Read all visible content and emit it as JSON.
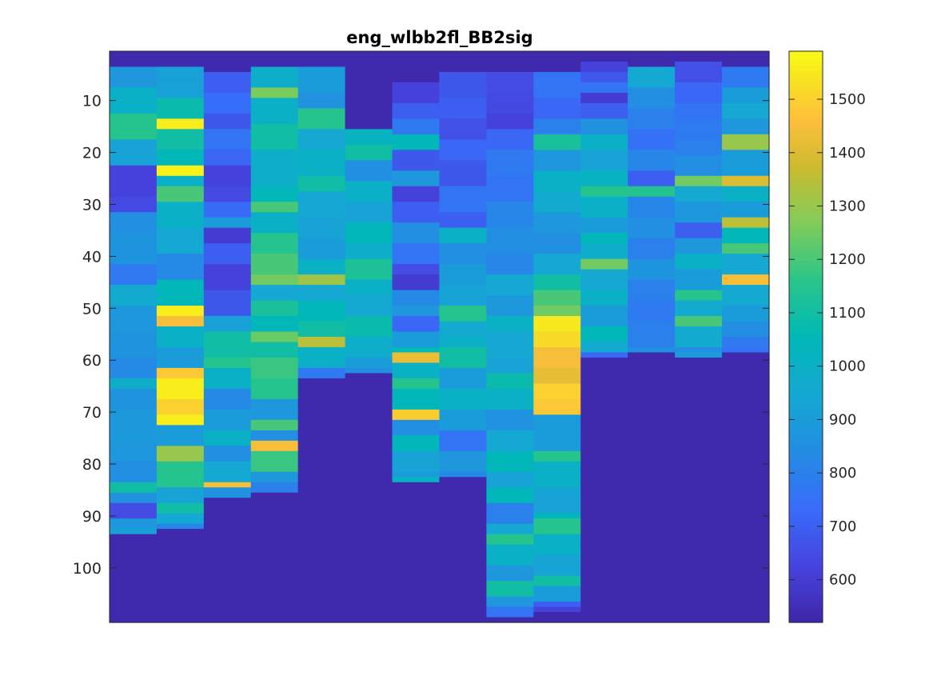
{
  "chart_data": {
    "type": "heatmap",
    "title": "eng_wlbb2fl_BB2sig",
    "xlabel": "",
    "ylabel": "",
    "rows": 110,
    "columns": 14,
    "y_reversed": true,
    "ylim": [
      0.5,
      110.5
    ],
    "y_ticks": [
      10,
      20,
      30,
      40,
      50,
      60,
      70,
      80,
      90,
      100
    ],
    "show_x_ticks": false,
    "colormap": "parula",
    "clim": [
      520,
      1590
    ],
    "colorbar_ticks": [
      600,
      700,
      800,
      900,
      1000,
      1100,
      1200,
      1300,
      1400,
      1500
    ],
    "fill_value": 530,
    "column_valid_ranges": [
      [
        4,
        93
      ],
      [
        4,
        92
      ],
      [
        5,
        86
      ],
      [
        4,
        85
      ],
      [
        4,
        63
      ],
      [
        16,
        62
      ],
      [
        7,
        83
      ],
      [
        5,
        82
      ],
      [
        5,
        109
      ],
      [
        5,
        108
      ],
      [
        3,
        59
      ],
      [
        4,
        58
      ],
      [
        3,
        59
      ],
      [
        4,
        58
      ]
    ],
    "column_profiles": [
      [
        [
          4,
          880
        ],
        [
          8,
          1000
        ],
        [
          13,
          1150
        ],
        [
          18,
          930
        ],
        [
          23,
          620
        ],
        [
          29,
          640
        ],
        [
          32,
          850
        ],
        [
          36,
          870
        ],
        [
          42,
          780
        ],
        [
          46,
          960
        ],
        [
          50,
          880
        ],
        [
          55,
          870
        ],
        [
          60,
          830
        ],
        [
          64,
          980
        ],
        [
          66,
          870
        ],
        [
          70,
          890
        ],
        [
          76,
          880
        ],
        [
          80,
          850
        ],
        [
          84,
          1100
        ],
        [
          86,
          860
        ],
        [
          88,
          650
        ],
        [
          91,
          880
        ],
        [
          93,
          920
        ]
      ],
      [
        [
          4,
          920
        ],
        [
          10,
          1080
        ],
        [
          14,
          1560
        ],
        [
          16,
          1100
        ],
        [
          20,
          1050
        ],
        [
          23,
          1570
        ],
        [
          25,
          1000
        ],
        [
          27,
          1200
        ],
        [
          30,
          1000
        ],
        [
          35,
          950
        ],
        [
          40,
          830
        ],
        [
          45,
          1050
        ],
        [
          50,
          1560
        ],
        [
          52,
          1450
        ],
        [
          54,
          1000
        ],
        [
          58,
          900
        ],
        [
          62,
          1480
        ],
        [
          64,
          1560
        ],
        [
          68,
          1500
        ],
        [
          71,
          1560
        ],
        [
          73,
          900
        ],
        [
          77,
          1300
        ],
        [
          80,
          1150
        ],
        [
          85,
          930
        ],
        [
          88,
          1100
        ],
        [
          90,
          950
        ],
        [
          92,
          820
        ]
      ],
      [
        [
          5,
          700
        ],
        [
          9,
          740
        ],
        [
          13,
          680
        ],
        [
          16,
          760
        ],
        [
          20,
          720
        ],
        [
          23,
          620
        ],
        [
          27,
          640
        ],
        [
          30,
          730
        ],
        [
          33,
          900
        ],
        [
          35,
          600
        ],
        [
          38,
          700
        ],
        [
          42,
          620
        ],
        [
          47,
          680
        ],
        [
          52,
          920
        ],
        [
          55,
          1100
        ],
        [
          60,
          1150
        ],
        [
          62,
          1000
        ],
        [
          66,
          830
        ],
        [
          70,
          900
        ],
        [
          74,
          1000
        ],
        [
          77,
          850
        ],
        [
          80,
          950
        ],
        [
          84,
          1450
        ],
        [
          85,
          860
        ]
      ],
      [
        [
          4,
          980
        ],
        [
          8,
          1260
        ],
        [
          10,
          1000
        ],
        [
          15,
          1100
        ],
        [
          20,
          980
        ],
        [
          27,
          1050
        ],
        [
          30,
          1200
        ],
        [
          32,
          1000
        ],
        [
          36,
          1150
        ],
        [
          40,
          1200
        ],
        [
          44,
          1250
        ],
        [
          46,
          950
        ],
        [
          49,
          1120
        ],
        [
          52,
          1050
        ],
        [
          55,
          1240
        ],
        [
          57,
          1100
        ],
        [
          60,
          1180
        ],
        [
          64,
          1150
        ],
        [
          68,
          880
        ],
        [
          72,
          1200
        ],
        [
          74,
          850
        ],
        [
          76,
          1450
        ],
        [
          78,
          1180
        ],
        [
          82,
          880
        ],
        [
          84,
          800
        ]
      ],
      [
        [
          4,
          900
        ],
        [
          9,
          860
        ],
        [
          12,
          1150
        ],
        [
          16,
          950
        ],
        [
          20,
          1000
        ],
        [
          25,
          1100
        ],
        [
          28,
          950
        ],
        [
          33,
          930
        ],
        [
          37,
          900
        ],
        [
          41,
          1000
        ],
        [
          44,
          1310
        ],
        [
          46,
          950
        ],
        [
          49,
          1050
        ],
        [
          53,
          1100
        ],
        [
          56,
          1350
        ],
        [
          58,
          1000
        ],
        [
          61,
          980
        ],
        [
          62,
          780
        ]
      ],
      [
        [
          16,
          1020
        ],
        [
          19,
          1100
        ],
        [
          22,
          850
        ],
        [
          26,
          1000
        ],
        [
          30,
          930
        ],
        [
          34,
          1050
        ],
        [
          38,
          980
        ],
        [
          41,
          1130
        ],
        [
          45,
          1000
        ],
        [
          48,
          950
        ],
        [
          52,
          1080
        ],
        [
          56,
          980
        ],
        [
          60,
          900
        ],
        [
          62,
          850
        ]
      ],
      [
        [
          7,
          620
        ],
        [
          11,
          700
        ],
        [
          14,
          780
        ],
        [
          17,
          1050
        ],
        [
          20,
          680
        ],
        [
          24,
          880
        ],
        [
          27,
          620
        ],
        [
          30,
          700
        ],
        [
          34,
          850
        ],
        [
          38,
          760
        ],
        [
          42,
          650
        ],
        [
          44,
          600
        ],
        [
          47,
          830
        ],
        [
          50,
          880
        ],
        [
          52,
          720
        ],
        [
          55,
          900
        ],
        [
          58,
          1050
        ],
        [
          59,
          1430
        ],
        [
          61,
          1000
        ],
        [
          64,
          1150
        ],
        [
          66,
          1050
        ],
        [
          70,
          1490
        ],
        [
          72,
          850
        ],
        [
          75,
          1050
        ],
        [
          78,
          930
        ],
        [
          82,
          900
        ],
        [
          83,
          1020
        ]
      ],
      [
        [
          5,
          680
        ],
        [
          10,
          700
        ],
        [
          14,
          660
        ],
        [
          18,
          720
        ],
        [
          22,
          680
        ],
        [
          27,
          760
        ],
        [
          32,
          700
        ],
        [
          35,
          1000
        ],
        [
          38,
          850
        ],
        [
          42,
          900
        ],
        [
          46,
          930
        ],
        [
          50,
          1150
        ],
        [
          53,
          960
        ],
        [
          56,
          1000
        ],
        [
          58,
          1100
        ],
        [
          62,
          900
        ],
        [
          66,
          1000
        ],
        [
          70,
          900
        ],
        [
          74,
          760
        ],
        [
          78,
          880
        ],
        [
          82,
          830
        ]
      ],
      [
        [
          5,
          650
        ],
        [
          9,
          640
        ],
        [
          13,
          620
        ],
        [
          16,
          720
        ],
        [
          20,
          780
        ],
        [
          25,
          760
        ],
        [
          30,
          820
        ],
        [
          35,
          850
        ],
        [
          40,
          820
        ],
        [
          44,
          950
        ],
        [
          48,
          880
        ],
        [
          52,
          1000
        ],
        [
          55,
          950
        ],
        [
          60,
          930
        ],
        [
          63,
          1080
        ],
        [
          66,
          1000
        ],
        [
          70,
          860
        ],
        [
          74,
          950
        ],
        [
          78,
          1050
        ],
        [
          82,
          930
        ],
        [
          85,
          1050
        ],
        [
          88,
          800
        ],
        [
          92,
          950
        ],
        [
          94,
          1150
        ],
        [
          96,
          1000
        ],
        [
          100,
          880
        ],
        [
          103,
          1100
        ],
        [
          106,
          880
        ],
        [
          108,
          760
        ]
      ],
      [
        [
          5,
          760
        ],
        [
          10,
          720
        ],
        [
          14,
          800
        ],
        [
          17,
          1120
        ],
        [
          20,
          880
        ],
        [
          24,
          1000
        ],
        [
          28,
          960
        ],
        [
          32,
          880
        ],
        [
          36,
          850
        ],
        [
          40,
          950
        ],
        [
          44,
          1100
        ],
        [
          47,
          1200
        ],
        [
          50,
          1250
        ],
        [
          52,
          1550
        ],
        [
          55,
          1520
        ],
        [
          58,
          1450
        ],
        [
          62,
          1420
        ],
        [
          65,
          1500
        ],
        [
          68,
          1480
        ],
        [
          71,
          900
        ],
        [
          75,
          900
        ],
        [
          78,
          1150
        ],
        [
          80,
          1000
        ],
        [
          85,
          930
        ],
        [
          90,
          1050
        ],
        [
          91,
          1150
        ],
        [
          94,
          1000
        ],
        [
          98,
          930
        ],
        [
          102,
          1100
        ],
        [
          104,
          900
        ],
        [
          107,
          700
        ],
        [
          108,
          620
        ]
      ],
      [
        [
          3,
          620
        ],
        [
          5,
          680
        ],
        [
          7,
          760
        ],
        [
          9,
          600
        ],
        [
          11,
          700
        ],
        [
          14,
          860
        ],
        [
          17,
          1000
        ],
        [
          20,
          930
        ],
        [
          24,
          1020
        ],
        [
          27,
          1150
        ],
        [
          29,
          1000
        ],
        [
          33,
          900
        ],
        [
          36,
          1050
        ],
        [
          38,
          980
        ],
        [
          41,
          1250
        ],
        [
          43,
          950
        ],
        [
          47,
          1000
        ],
        [
          50,
          900
        ],
        [
          54,
          1050
        ],
        [
          57,
          960
        ],
        [
          59,
          720
        ]
      ],
      [
        [
          4,
          950
        ],
        [
          8,
          850
        ],
        [
          12,
          800
        ],
        [
          16,
          750
        ],
        [
          20,
          820
        ],
        [
          24,
          700
        ],
        [
          27,
          1150
        ],
        [
          29,
          820
        ],
        [
          33,
          850
        ],
        [
          37,
          800
        ],
        [
          41,
          870
        ],
        [
          45,
          800
        ],
        [
          49,
          780
        ],
        [
          53,
          800
        ],
        [
          58,
          850
        ]
      ],
      [
        [
          3,
          660
        ],
        [
          7,
          720
        ],
        [
          11,
          760
        ],
        [
          14,
          780
        ],
        [
          18,
          800
        ],
        [
          21,
          850
        ],
        [
          25,
          1250
        ],
        [
          27,
          950
        ],
        [
          30,
          880
        ],
        [
          34,
          700
        ],
        [
          37,
          880
        ],
        [
          40,
          1000
        ],
        [
          43,
          900
        ],
        [
          47,
          1150
        ],
        [
          49,
          960
        ],
        [
          52,
          1200
        ],
        [
          54,
          960
        ],
        [
          58,
          850
        ],
        [
          59,
          900
        ]
      ],
      [
        [
          4,
          780
        ],
        [
          8,
          900
        ],
        [
          11,
          950
        ],
        [
          14,
          880
        ],
        [
          17,
          1300
        ],
        [
          20,
          900
        ],
        [
          25,
          1400
        ],
        [
          27,
          1000
        ],
        [
          30,
          900
        ],
        [
          33,
          1350
        ],
        [
          35,
          1050
        ],
        [
          38,
          1200
        ],
        [
          40,
          950
        ],
        [
          44,
          1450
        ],
        [
          46,
          950
        ],
        [
          50,
          900
        ],
        [
          53,
          850
        ],
        [
          56,
          780
        ],
        [
          58,
          760
        ]
      ]
    ]
  }
}
